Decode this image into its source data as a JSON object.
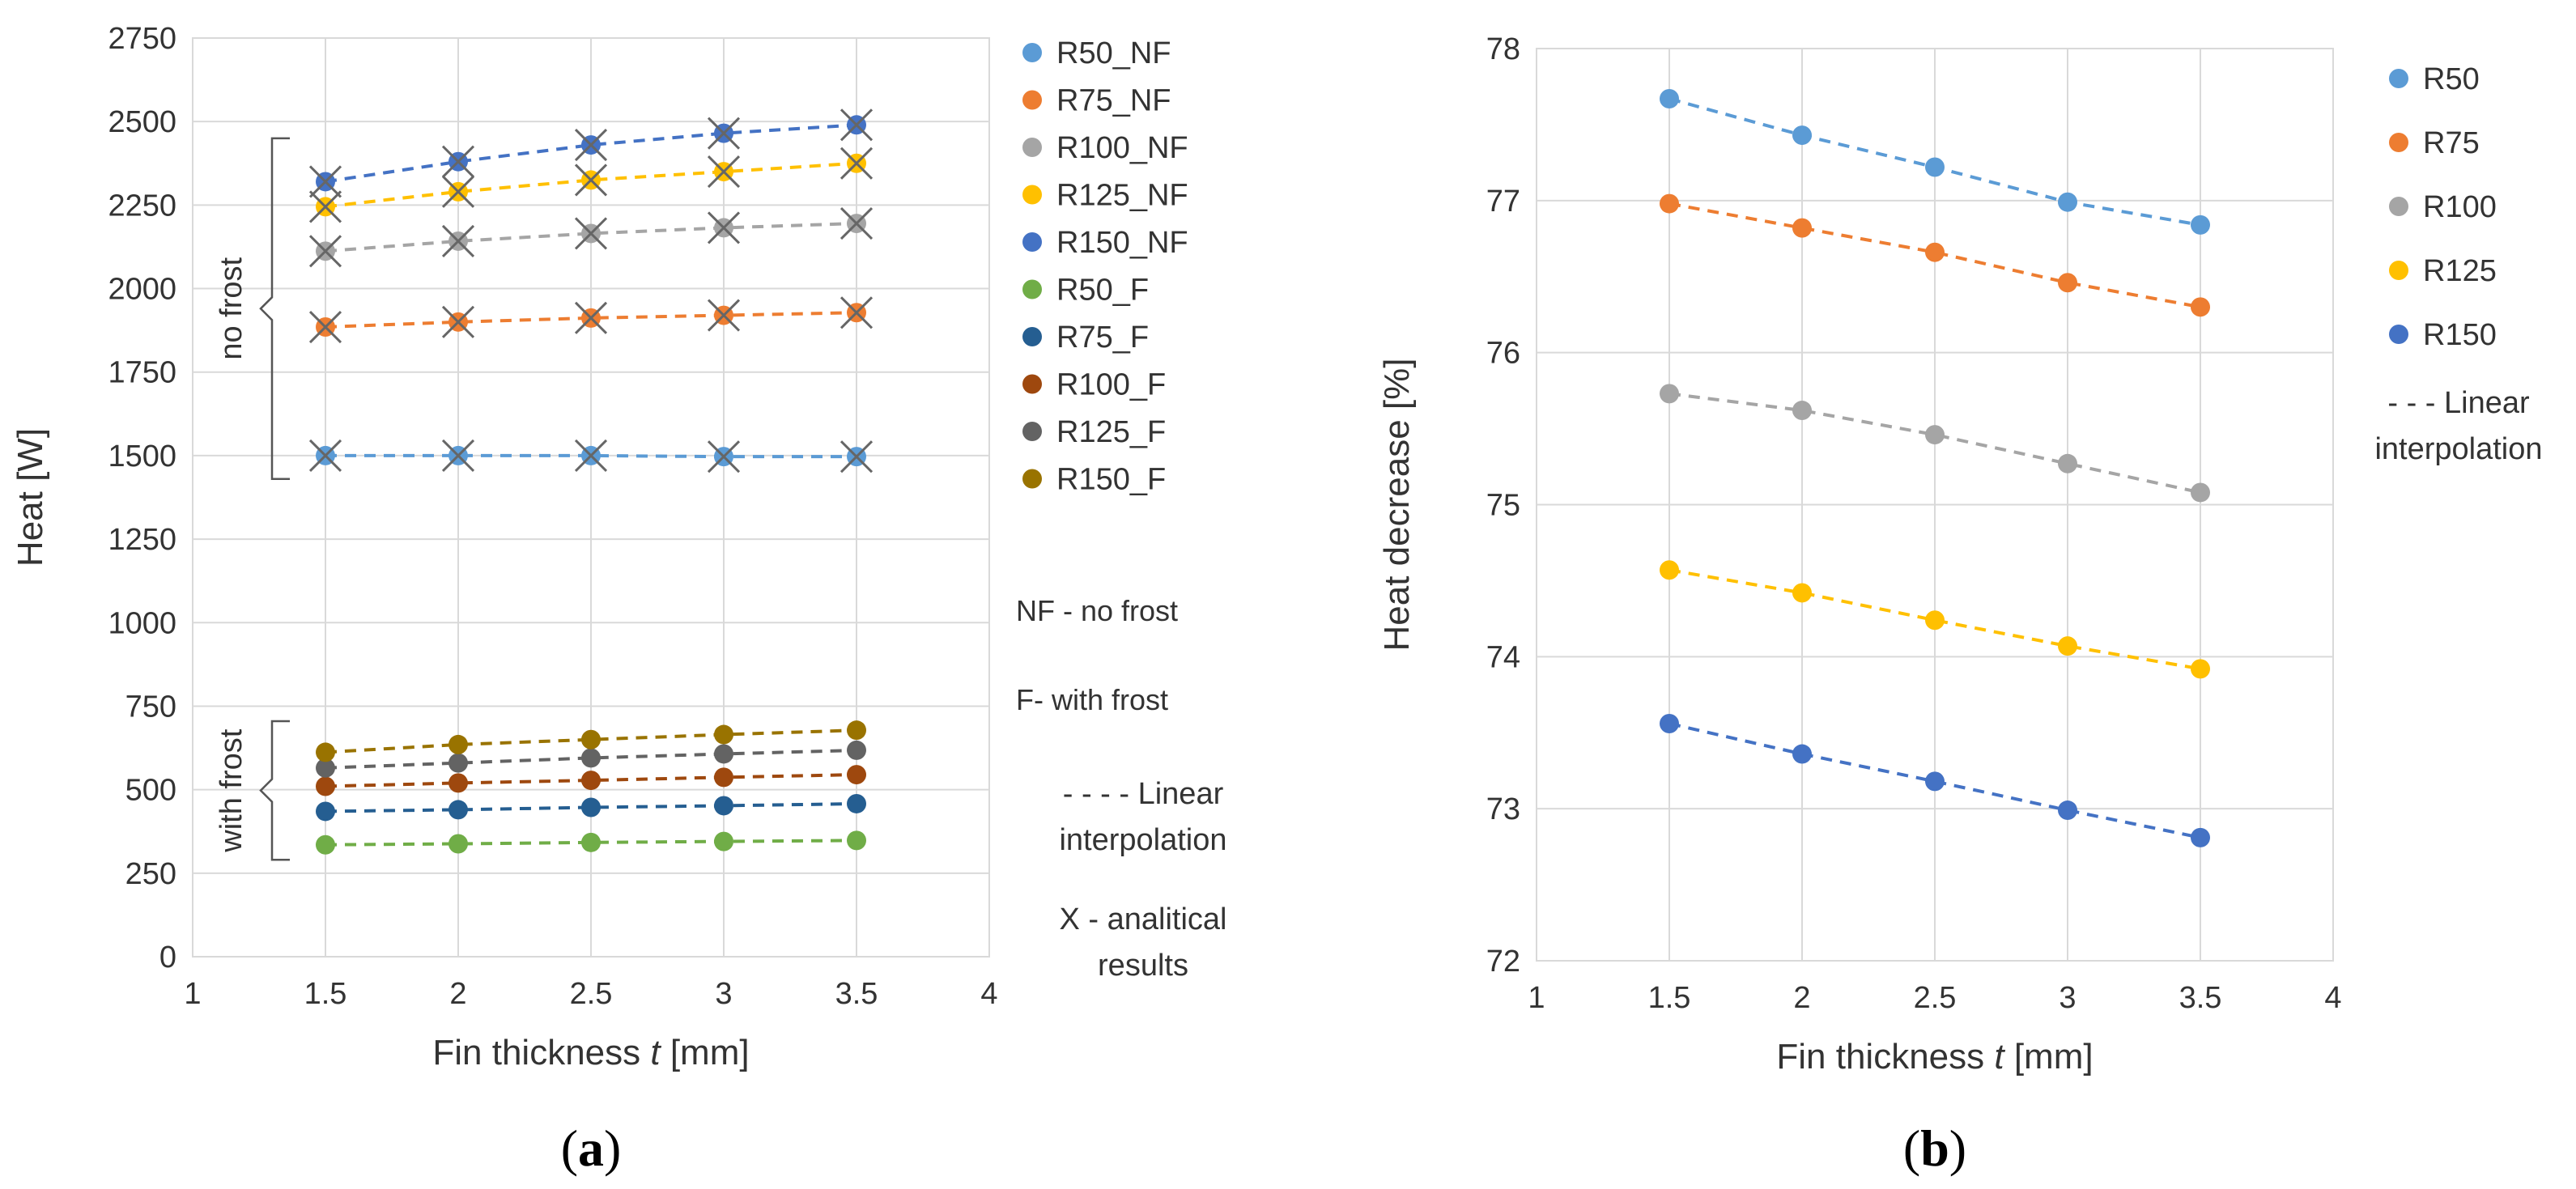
{
  "chart_data": [
    {
      "type": "scatter",
      "panel": "(a)",
      "panel_letter": "a",
      "xlabel_main": "Fin thickness ",
      "xlabel_var": "t",
      "xlabel_unit": " [mm]",
      "ylabel": "Heat [W]",
      "xlim": [
        1,
        4
      ],
      "ylim": [
        0,
        2750
      ],
      "xticks": [
        1,
        1.5,
        2,
        2.5,
        3,
        3.5,
        4
      ],
      "xtick_labels": [
        "1",
        "1.5",
        "2",
        "2.5",
        "3",
        "3.5",
        "4"
      ],
      "yticks": [
        0,
        250,
        500,
        750,
        1000,
        1250,
        1500,
        1750,
        2000,
        2250,
        2500,
        2750
      ],
      "ytick_labels": [
        "0",
        "250",
        "500",
        "750",
        "1000",
        "1250",
        "1500",
        "1750",
        "2000",
        "2250",
        "2500",
        "2750"
      ],
      "grid": true,
      "legend_position": "right",
      "x": [
        1.5,
        2,
        2.5,
        3,
        3.5
      ],
      "series": [
        {
          "name": "R50_NF",
          "color": "#5B9BD5",
          "values": [
            1500,
            1500,
            1500,
            1497,
            1497
          ]
        },
        {
          "name": "R75_NF",
          "color": "#ED7D31",
          "values": [
            1885,
            1900,
            1912,
            1920,
            1928
          ]
        },
        {
          "name": "R100_NF",
          "color": "#A5A5A5",
          "values": [
            2112,
            2142,
            2165,
            2182,
            2195
          ]
        },
        {
          "name": "R125_NF",
          "color": "#FFC000",
          "values": [
            2245,
            2290,
            2325,
            2350,
            2375
          ]
        },
        {
          "name": "R150_NF",
          "color": "#4472C4",
          "values": [
            2320,
            2380,
            2430,
            2465,
            2490
          ]
        },
        {
          "name": "R50_F",
          "color": "#70AD47",
          "values": [
            335,
            338,
            342,
            345,
            348
          ]
        },
        {
          "name": "R75_F",
          "color": "#255E91",
          "values": [
            435,
            440,
            447,
            452,
            458
          ]
        },
        {
          "name": "R100_F",
          "color": "#9E480E",
          "values": [
            510,
            520,
            528,
            537,
            545
          ]
        },
        {
          "name": "R125_F",
          "color": "#636363",
          "values": [
            565,
            580,
            595,
            607,
            618
          ]
        },
        {
          "name": "R150_F",
          "color": "#997300",
          "values": [
            612,
            635,
            650,
            665,
            678
          ]
        }
      ],
      "analytical_series": [
        "R50_NF",
        "R75_NF",
        "R100_NF",
        "R125_NF",
        "R150_NF"
      ],
      "analytical_marker_color": "#666666",
      "notes": [
        "NF - no frost",
        "F- with frost"
      ],
      "line_note": [
        "- - - - Linear",
        "interpolation"
      ],
      "marker_note": [
        "X - analitical",
        "results"
      ],
      "brackets": [
        {
          "label": "no frost",
          "range": [
            1430,
            2450
          ]
        },
        {
          "label": "with frost",
          "range": [
            290,
            705
          ]
        }
      ]
    },
    {
      "type": "scatter",
      "panel": "(b)",
      "panel_letter": "b",
      "xlabel_main": "Fin thickness ",
      "xlabel_var": "t",
      "xlabel_unit": " [mm]",
      "ylabel": "Heat decrease [%]",
      "xlim": [
        1,
        4
      ],
      "ylim": [
        72,
        78
      ],
      "xticks": [
        1,
        1.5,
        2,
        2.5,
        3,
        3.5,
        4
      ],
      "xtick_labels": [
        "1",
        "1.5",
        "2",
        "2.5",
        "3",
        "3.5",
        "4"
      ],
      "yticks": [
        72,
        73,
        74,
        75,
        76,
        77,
        78
      ],
      "ytick_labels": [
        "72",
        "73",
        "74",
        "75",
        "76",
        "77",
        "78"
      ],
      "grid": true,
      "legend_position": "right",
      "x": [
        1.5,
        2,
        2.5,
        3,
        3.5
      ],
      "series": [
        {
          "name": "R50",
          "color": "#5B9BD5",
          "values": [
            77.67,
            77.43,
            77.22,
            76.99,
            76.84
          ]
        },
        {
          "name": "R75",
          "color": "#ED7D31",
          "values": [
            76.98,
            76.82,
            76.66,
            76.46,
            76.3
          ]
        },
        {
          "name": "R100",
          "color": "#A5A5A5",
          "values": [
            75.73,
            75.62,
            75.46,
            75.27,
            75.08
          ]
        },
        {
          "name": "R125",
          "color": "#FFC000",
          "values": [
            74.57,
            74.42,
            74.24,
            74.07,
            73.92
          ]
        },
        {
          "name": "R150",
          "color": "#4472C4",
          "values": [
            73.56,
            73.36,
            73.18,
            72.99,
            72.81
          ]
        }
      ],
      "line_note": [
        "- - - Linear",
        "interpolation"
      ]
    }
  ]
}
